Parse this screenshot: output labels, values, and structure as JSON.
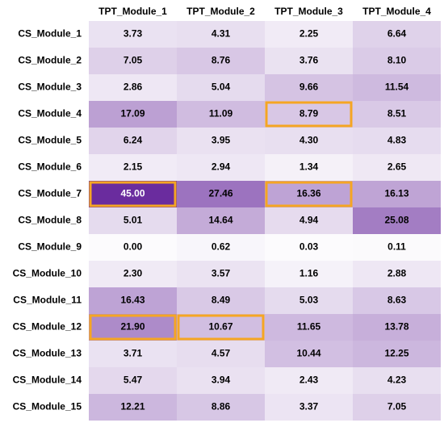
{
  "chart_data": {
    "type": "heatmap",
    "title": "",
    "xlabel": "",
    "ylabel": "",
    "columns": [
      "TPT_Module_1",
      "TPT_Module_2",
      "TPT_Module_3",
      "TPT_Module_4"
    ],
    "rows": [
      "CS_Module_1",
      "CS_Module_2",
      "CS_Module_3",
      "CS_Module_4",
      "CS_Module_5",
      "CS_Module_6",
      "CS_Module_7",
      "CS_Module_8",
      "CS_Module_9",
      "CS_Module_10",
      "CS_Module_11",
      "CS_Module_12",
      "CS_Module_13",
      "CS_Module_14",
      "CS_Module_15"
    ],
    "values": [
      [
        3.73,
        4.31,
        2.25,
        6.64
      ],
      [
        7.05,
        8.76,
        3.76,
        8.1
      ],
      [
        2.86,
        5.04,
        9.66,
        11.54
      ],
      [
        17.09,
        11.09,
        8.79,
        8.51
      ],
      [
        6.24,
        3.95,
        4.3,
        4.83
      ],
      [
        2.15,
        2.94,
        1.34,
        2.65
      ],
      [
        45.0,
        27.46,
        16.36,
        16.13
      ],
      [
        5.01,
        14.64,
        4.94,
        25.08
      ],
      [
        0.0,
        0.62,
        0.03,
        0.11
      ],
      [
        2.3,
        3.57,
        1.16,
        2.88
      ],
      [
        16.43,
        8.49,
        5.03,
        8.63
      ],
      [
        21.9,
        10.67,
        11.65,
        13.78
      ],
      [
        3.71,
        4.57,
        10.44,
        12.25
      ],
      [
        5.47,
        3.94,
        2.43,
        4.23
      ],
      [
        12.21,
        8.86,
        3.37,
        7.05
      ]
    ],
    "labels": [
      [
        "3.73",
        "4.31",
        "2.25",
        "6.64"
      ],
      [
        "7.05",
        "8.76",
        "3.76",
        "8.10"
      ],
      [
        "2.86",
        "5.04",
        "9.66",
        "11.54"
      ],
      [
        "17.09",
        "11.09",
        "8.79",
        "8.51"
      ],
      [
        "6.24",
        "3.95",
        "4.30",
        "4.83"
      ],
      [
        "2.15",
        "2.94",
        "1.34",
        "2.65"
      ],
      [
        "45.00",
        "27.46",
        "16.36",
        "16.13"
      ],
      [
        "5.01",
        "14.64",
        "4.94",
        "25.08"
      ],
      [
        "0.00",
        "0.62",
        "0.03",
        "0.11"
      ],
      [
        "2.30",
        "3.57",
        "1.16",
        "2.88"
      ],
      [
        "16.43",
        "8.49",
        "5.03",
        "8.63"
      ],
      [
        "21.90",
        "10.67",
        "11.65",
        "13.78"
      ],
      [
        "3.71",
        "4.57",
        "10.44",
        "12.25"
      ],
      [
        "5.47",
        "3.94",
        "2.43",
        "4.23"
      ],
      [
        "12.21",
        "8.86",
        "3.37",
        "7.05"
      ]
    ],
    "value_range": [
      0,
      45
    ],
    "colormap": "purples",
    "highlighted_cells": [
      {
        "row": "CS_Module_4",
        "column": "TPT_Module_3"
      },
      {
        "row": "CS_Module_7",
        "column": "TPT_Module_1"
      },
      {
        "row": "CS_Module_7",
        "column": "TPT_Module_3"
      },
      {
        "row": "CS_Module_12",
        "column": "TPT_Module_1"
      },
      {
        "row": "CS_Module_12",
        "column": "TPT_Module_2"
      }
    ],
    "highlight_color": "#F5A623",
    "color_low": "#FCFBFD",
    "color_high": "#6A2C9E",
    "text_color": "#000000",
    "text_color_dark_cell": "#FFFFFF",
    "grid": false,
    "legend": "none"
  }
}
